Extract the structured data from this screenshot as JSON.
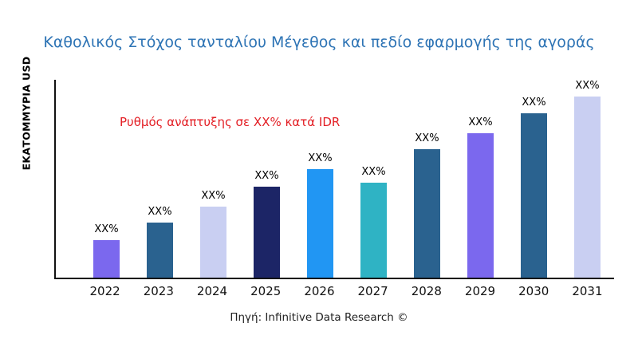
{
  "colors": {
    "title": "#2e74b5",
    "annotation": "#e31e24",
    "axis": "#111111",
    "text": "#000000",
    "background": "#ffffff"
  },
  "source": "Πηγή: Infinitive Data Research ©",
  "chart_data": {
    "type": "bar",
    "title": "Καθολικός Στόχος τανταλίου Μέγεθος και πεδίο εφαρμογής της αγοράς",
    "ylabel": "ΕΚΑΤΟΜΜΥΡΙΑ USD",
    "xlabel": "",
    "annotation": "Ρυθμός ανάπτυξης σε XX% κατά IDR",
    "categories": [
      "2022",
      "2023",
      "2024",
      "2025",
      "2026",
      "2027",
      "2028",
      "2029",
      "2030",
      "2031"
    ],
    "values": [
      19,
      28,
      36,
      46,
      55,
      48,
      65,
      73,
      83,
      92
    ],
    "value_unit": "percent-of-plot-height (no numeric y ticks shown)",
    "bar_labels": [
      "XX%",
      "XX%",
      "XX%",
      "XX%",
      "XX%",
      "XX%",
      "XX%",
      "XX%",
      "XX%",
      "XX%"
    ],
    "bar_colors": [
      "#7b68ee",
      "#2a628f",
      "#c9cff2",
      "#1c2566",
      "#2196f3",
      "#2fb3c4",
      "#2a628f",
      "#7b68ee",
      "#2a628f",
      "#c9cff2"
    ],
    "ylim": [
      0,
      100
    ],
    "grid": false,
    "legend": false
  }
}
